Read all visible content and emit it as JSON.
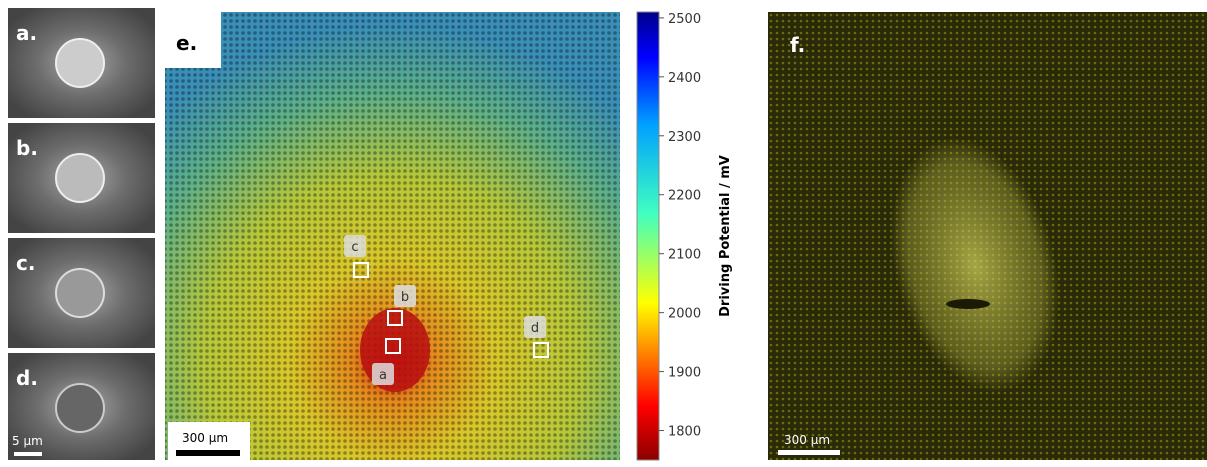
{
  "panels": {
    "a": "a.",
    "b": "b.",
    "c": "c.",
    "d": "d.",
    "e": "e.",
    "f": "f."
  },
  "scale_bars": {
    "sem": "5 µm",
    "map": "300 µm",
    "fluor": "300 µm"
  },
  "sites": [
    "a",
    "b",
    "c",
    "d"
  ],
  "colorbar": {
    "label": "Driving Potential / mV",
    "lim": [
      1750,
      2510
    ],
    "ticks": [
      1800,
      1900,
      2000,
      2100,
      2200,
      2300,
      2400,
      2500
    ]
  }
}
